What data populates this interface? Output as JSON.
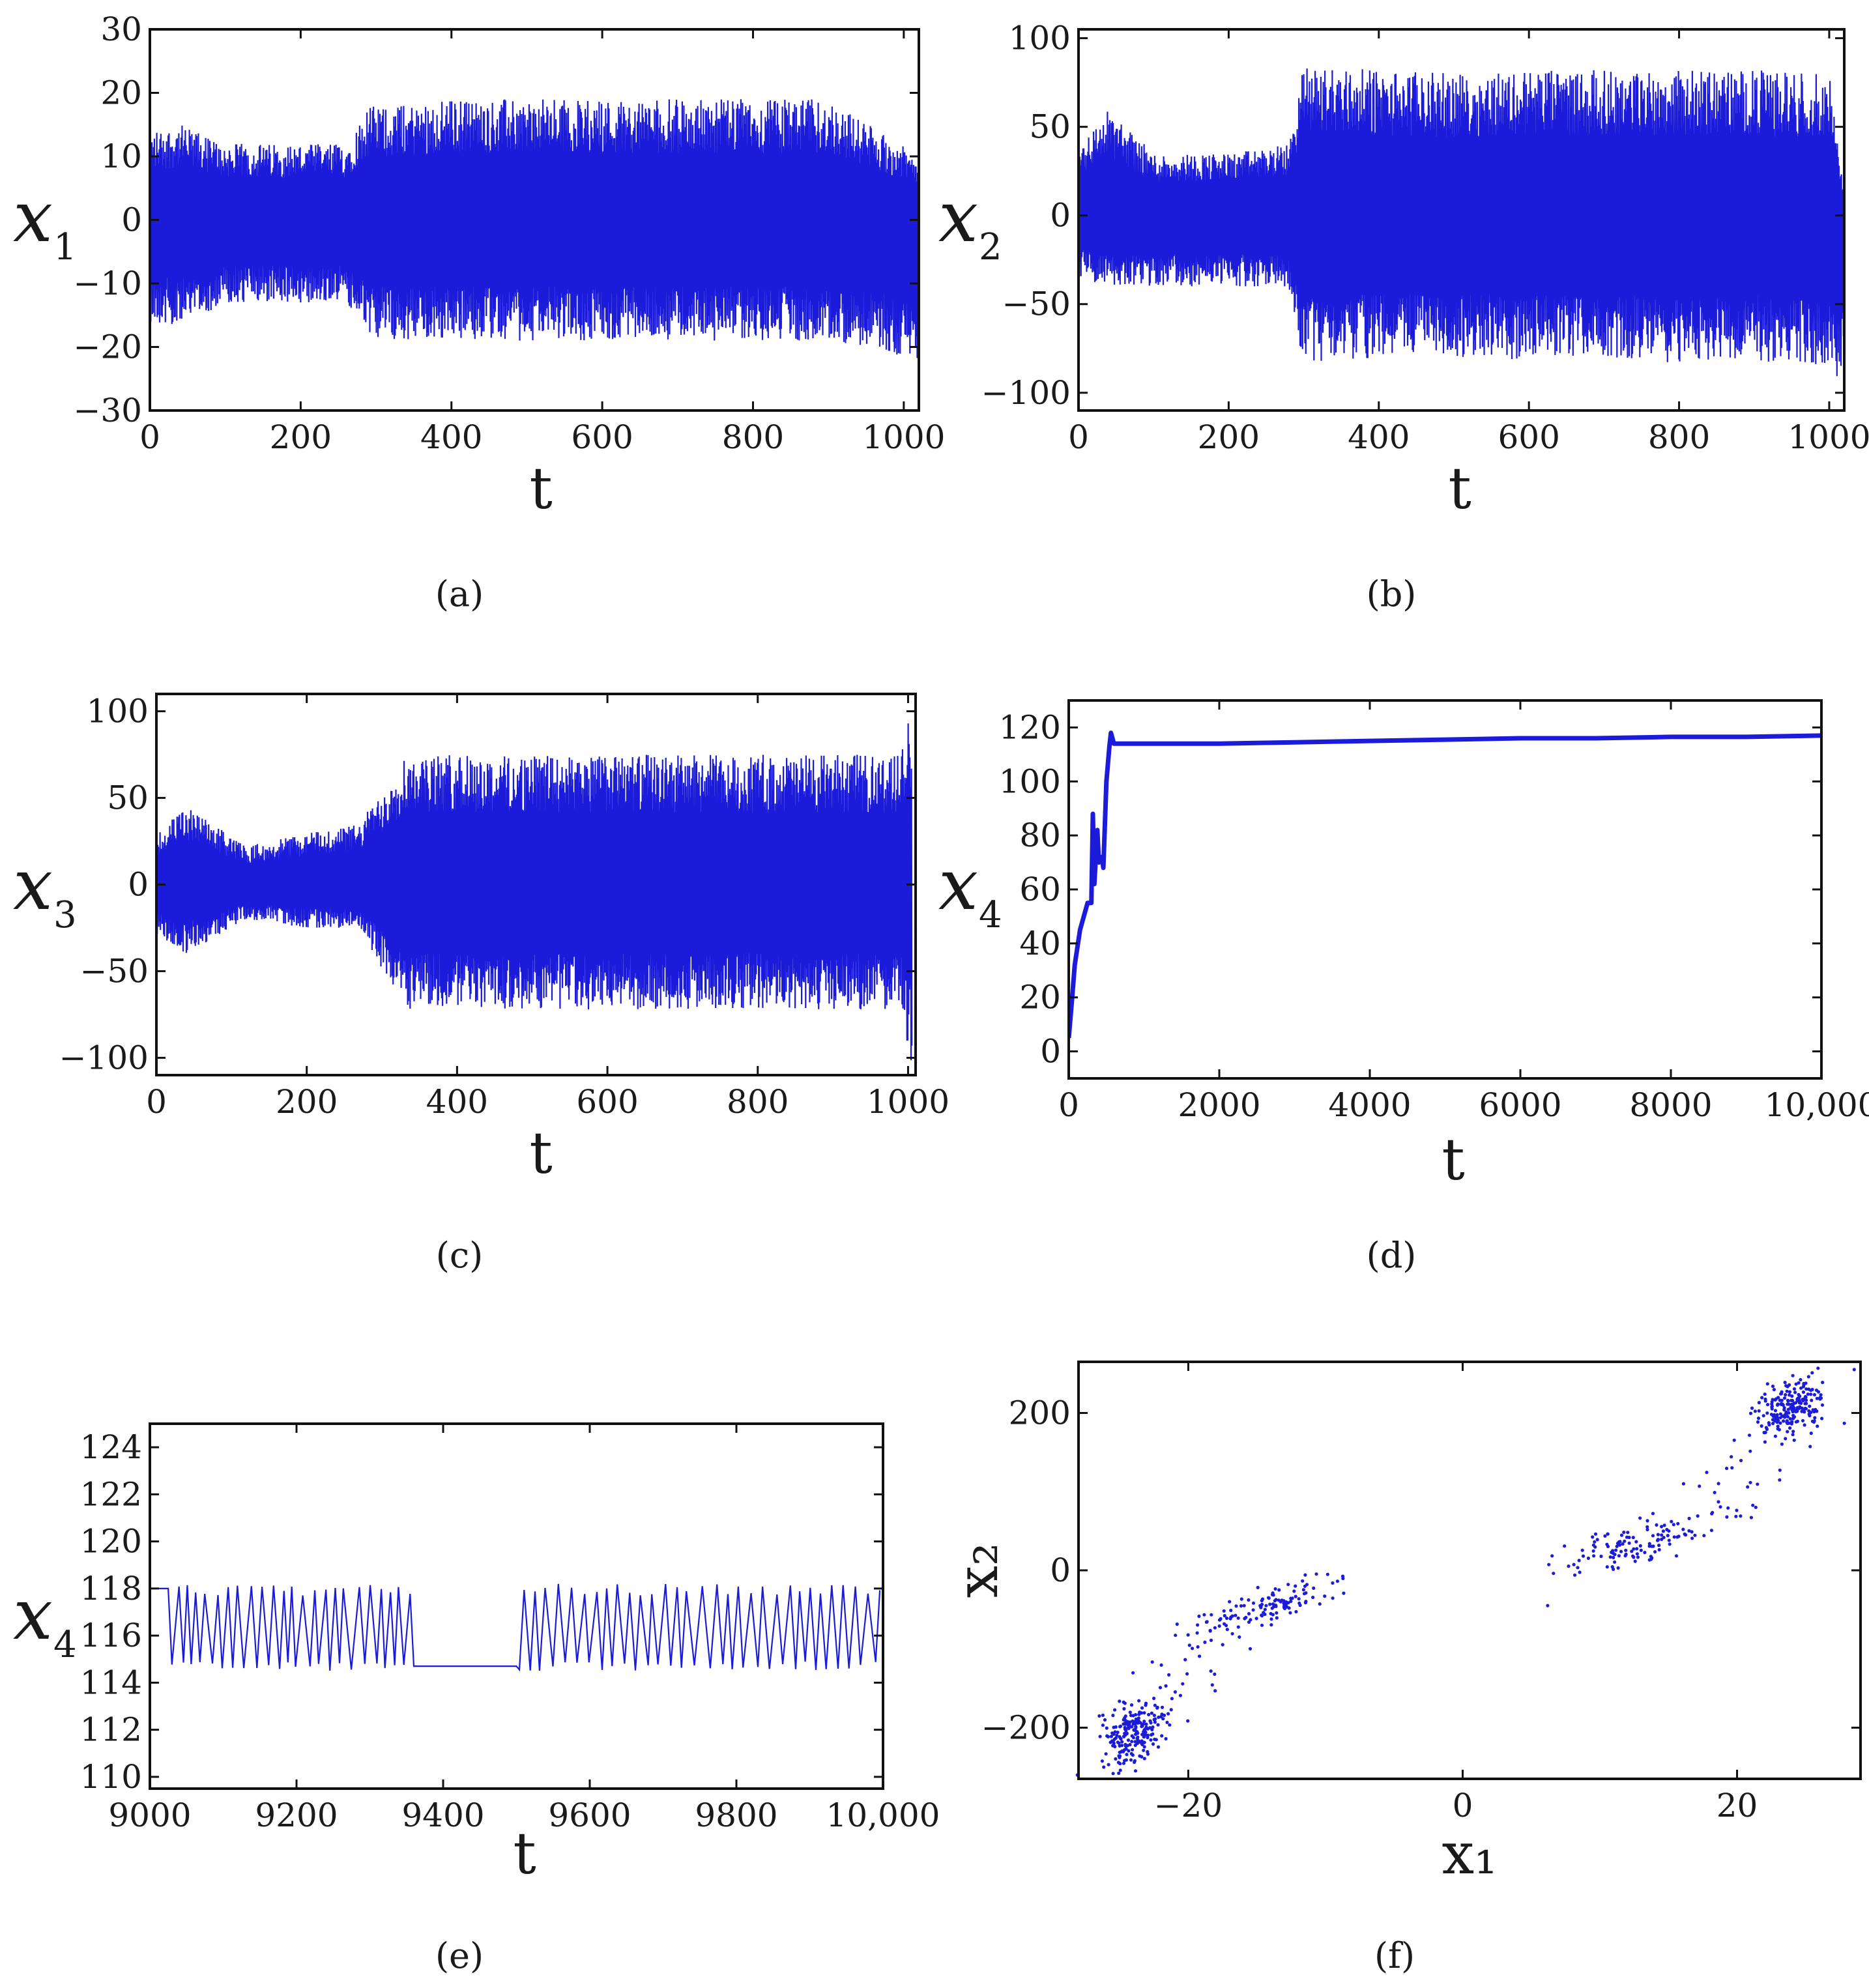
{
  "captions": [
    "(a)",
    "(b)",
    "(c)",
    "(d)",
    "(e)",
    "(f)"
  ],
  "chart_data": [
    {
      "id": "a",
      "type": "line",
      "ylabel": "x",
      "ylabel_sub": "1",
      "xlabel": "t",
      "xlim": [
        0,
        1020
      ],
      "ylim": [
        -30,
        30
      ],
      "xticks": [
        0,
        200,
        400,
        600,
        800,
        1000
      ],
      "xtick_labels": [
        "0",
        "200",
        "400",
        "600",
        "800",
        "1000"
      ],
      "yticks": [
        -30,
        -20,
        -10,
        0,
        10,
        20,
        30
      ],
      "ytick_labels": [
        "−30",
        "−20",
        "−10",
        "0",
        "10",
        "20",
        "30"
      ],
      "envelope": {
        "t": [
          0,
          40,
          100,
          180,
          260,
          290,
          320,
          400,
          500,
          600,
          700,
          800,
          900,
          1020
        ],
        "upper": [
          14,
          15,
          12,
          12,
          12,
          18,
          18,
          19,
          19,
          19,
          19,
          19,
          19,
          10
        ],
        "lower": [
          -16,
          -17,
          -13,
          -13,
          -13,
          -19,
          -19,
          -19,
          -19,
          -19,
          -19,
          -19,
          -19,
          -22
        ]
      },
      "color": "#1b1bd9"
    },
    {
      "id": "b",
      "type": "line",
      "ylabel": "x",
      "ylabel_sub": "2",
      "xlabel": "t",
      "xlim": [
        0,
        1020
      ],
      "ylim": [
        -110,
        105
      ],
      "xticks": [
        0,
        200,
        400,
        600,
        800,
        1000
      ],
      "xtick_labels": [
        "0",
        "200",
        "400",
        "600",
        "800",
        "1000"
      ],
      "yticks": [
        -100,
        -50,
        0,
        50,
        100
      ],
      "ytick_labels": [
        "−100",
        "−50",
        "0",
        "50",
        "100"
      ],
      "envelope": {
        "t": [
          0,
          40,
          100,
          200,
          280,
          300,
          400,
          500,
          600,
          700,
          800,
          900,
          1000,
          1020
        ],
        "upper": [
          40,
          60,
          35,
          35,
          40,
          85,
          82,
          80,
          82,
          82,
          82,
          82,
          80,
          10
        ],
        "lower": [
          -35,
          -40,
          -40,
          -40,
          -40,
          -85,
          -80,
          -80,
          -82,
          -80,
          -85,
          -82,
          -85,
          -100
        ]
      },
      "color": "#1b1bd9"
    },
    {
      "id": "c",
      "type": "line",
      "ylabel": "x",
      "ylabel_sub": "3",
      "xlabel": "t",
      "xlim": [
        0,
        1010
      ],
      "ylim": [
        -110,
        110
      ],
      "xticks": [
        0,
        200,
        400,
        600,
        800,
        1000
      ],
      "xtick_labels": [
        "0",
        "200",
        "400",
        "600",
        "800",
        "1000"
      ],
      "yticks": [
        -100,
        -50,
        0,
        50,
        100
      ],
      "ytick_labels": [
        "−100",
        "−50",
        "0",
        "50",
        "100"
      ],
      "envelope": {
        "t": [
          0,
          40,
          120,
          200,
          270,
          330,
          400,
          500,
          600,
          700,
          800,
          900,
          990,
          1005
        ],
        "upper": [
          30,
          45,
          22,
          30,
          35,
          75,
          75,
          75,
          75,
          75,
          75,
          75,
          75,
          105
        ],
        "lower": [
          -30,
          -40,
          -20,
          -25,
          -25,
          -72,
          -72,
          -72,
          -72,
          -72,
          -72,
          -72,
          -72,
          -105
        ]
      },
      "color": "#1b1bd9"
    },
    {
      "id": "d",
      "type": "line",
      "ylabel": "x",
      "ylabel_sub": "4",
      "xlabel": "t",
      "xlim": [
        0,
        10000
      ],
      "ylim": [
        -10,
        130
      ],
      "xticks": [
        0,
        2000,
        4000,
        6000,
        8000,
        10000
      ],
      "xtick_labels": [
        "0",
        "2000",
        "4000",
        "6000",
        "8000",
        "10,000"
      ],
      "yticks": [
        0,
        20,
        40,
        60,
        80,
        100,
        120
      ],
      "ytick_labels": [
        "0",
        "20",
        "40",
        "60",
        "80",
        "100",
        "120"
      ],
      "x": [
        0,
        40,
        80,
        150,
        200,
        250,
        300,
        320,
        340,
        380,
        400,
        440,
        460,
        500,
        540,
        560,
        600,
        1000,
        2000,
        3000,
        4000,
        5000,
        6000,
        7000,
        8000,
        9000,
        10000
      ],
      "y": [
        5,
        18,
        32,
        45,
        50,
        55,
        55,
        88,
        62,
        82,
        70,
        72,
        68,
        100,
        113,
        118,
        114,
        114,
        114,
        114.5,
        115,
        115.5,
        116,
        116,
        116.5,
        116.5,
        117
      ],
      "color": "#1b1bd9"
    },
    {
      "id": "e",
      "type": "line",
      "ylabel": "x",
      "ylabel_sub": "4",
      "xlabel": "t",
      "xlim": [
        9000,
        10000
      ],
      "ylim": [
        109.5,
        125
      ],
      "xticks": [
        9000,
        9200,
        9400,
        9600,
        9800,
        10000
      ],
      "xtick_labels": [
        "9000",
        "9200",
        "9400",
        "9600",
        "9800",
        "10,000"
      ],
      "yticks": [
        110,
        112,
        114,
        116,
        118,
        120,
        122,
        124
      ],
      "ytick_labels": [
        "110",
        "112",
        "114",
        "116",
        "118",
        "120",
        "122",
        "124"
      ],
      "oscillation": {
        "high": 118,
        "low": 114.7
      },
      "plateau": {
        "t_start": 9360,
        "t_end": 9500,
        "value": 114.7
      },
      "color": "#1b1bd9"
    },
    {
      "id": "f",
      "type": "scatter",
      "xlabel": "x₁",
      "ylabel": "x₂",
      "xlim": [
        -28,
        29
      ],
      "ylim": [
        -265,
        265
      ],
      "xticks": [
        -20,
        0,
        20
      ],
      "xtick_labels": [
        "−20",
        "0",
        "20"
      ],
      "yticks": [
        -200,
        0,
        200
      ],
      "ytick_labels": [
        "−200",
        "0",
        "200"
      ],
      "clusters": [
        {
          "center": [
            -24,
            -205
          ],
          "spread": [
            1.2,
            18
          ],
          "n": 220
        },
        {
          "center": [
            24,
            205
          ],
          "spread": [
            1.2,
            18
          ],
          "n": 220
        },
        {
          "center": [
            -14,
            -45
          ],
          "spread": [
            3,
            12
          ],
          "n": 130
        },
        {
          "center": [
            13,
            35
          ],
          "spread": [
            3,
            14
          ],
          "n": 130
        },
        {
          "center": [
            -20,
            -120
          ],
          "spread": [
            2,
            30
          ],
          "n": 20
        },
        {
          "center": [
            20,
            110
          ],
          "spread": [
            2,
            30
          ],
          "n": 20
        }
      ],
      "color": "#1b1bd9"
    }
  ]
}
